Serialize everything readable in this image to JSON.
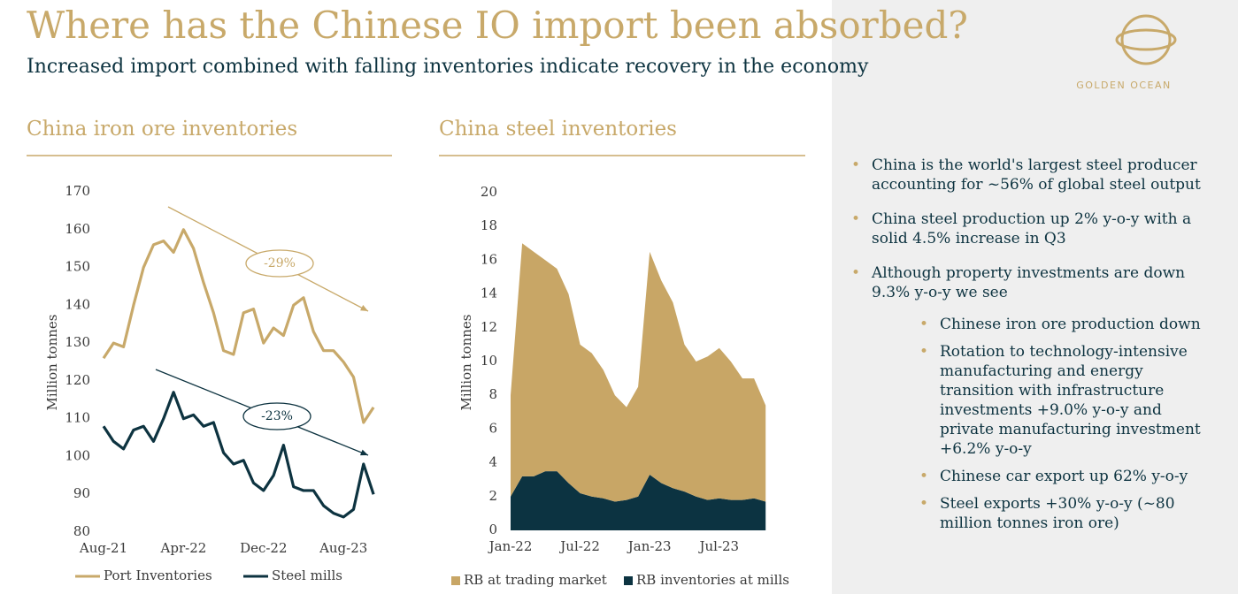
{
  "header": {
    "title": "Where has the Chinese IO import been absorbed?",
    "subtitle": "Increased import combined with falling inventories indicate recovery in the economy",
    "logo": "GOLDEN OCEAN"
  },
  "bullets": [
    {
      "text": "China is the world's largest steel producer accounting for ~56% of global steel output",
      "children": []
    },
    {
      "text": "China steel production up 2% y-o-y with a solid 4.5% increase in Q3",
      "children": []
    },
    {
      "text": "Although property investments are down 9.3% y-o-y we see",
      "children": [
        "Chinese iron ore production down",
        "Rotation to technology-intensive manufacturing and energy transition with infrastructure investments +9.0% y-o-y and private manufacturing investment +6.2% y-o-y",
        "Chinese car export up 62% y-o-y",
        "Steel exports +30% y-o-y (~80 million tonnes iron ore)"
      ]
    }
  ],
  "chart_data": [
    {
      "type": "line",
      "title": "China iron ore inventories",
      "ylabel": "Million tonnes",
      "categories": [
        "Aug-21",
        null,
        null,
        null,
        null,
        null,
        null,
        null,
        "Apr-22",
        null,
        null,
        null,
        null,
        null,
        null,
        null,
        "Dec-22",
        null,
        null,
        null,
        null,
        null,
        null,
        null,
        "Aug-23",
        null,
        null,
        null
      ],
      "series": [
        {
          "name": "Port Inventories",
          "color": "#c8a96a",
          "values": [
            126,
            130,
            129,
            140,
            150,
            156,
            157,
            154,
            160,
            155,
            146,
            138,
            128,
            127,
            138,
            139,
            130,
            134,
            132,
            140,
            142,
            133,
            128,
            128,
            125,
            121,
            109,
            113
          ]
        },
        {
          "name": "Steel mills",
          "color": "#0d3340",
          "values": [
            108,
            104,
            102,
            107,
            108,
            104,
            110,
            117,
            110,
            111,
            108,
            109,
            101,
            98,
            99,
            93,
            91,
            95,
            103,
            92,
            91,
            91,
            87,
            85,
            84,
            86,
            98,
            90
          ]
        }
      ],
      "ylim": [
        80,
        170
      ],
      "yticks": [
        80,
        90,
        100,
        110,
        120,
        130,
        140,
        150,
        160,
        170
      ],
      "annotations": [
        {
          "text": "-29%",
          "color": "#c8a96a"
        },
        {
          "text": "-23%",
          "color": "#0d3340"
        }
      ],
      "legend": "bottom"
    },
    {
      "type": "stacked-area",
      "title": "China steel inventories",
      "ylabel": "Million tonnes",
      "categories": [
        "Jan-22",
        null,
        null,
        null,
        null,
        null,
        "Jul-22",
        null,
        null,
        null,
        null,
        null,
        "Jan-23",
        null,
        null,
        null,
        null,
        null,
        "Jul-23",
        null,
        null,
        null,
        null
      ],
      "series": [
        {
          "name": "RB at trading market",
          "color": "#c8a666",
          "values": [
            6,
            13.8,
            13.3,
            12.5,
            12,
            11.2,
            8.8,
            8.5,
            7.6,
            6.3,
            5.5,
            6.5,
            13.2,
            12,
            11,
            8.7,
            8,
            8.5,
            8.9,
            8.2,
            7.2,
            7.1,
            5.7
          ]
        },
        {
          "name": "RB inventories at mills",
          "color": "#0c3341",
          "values": [
            2,
            3.2,
            3.2,
            3.5,
            3.5,
            2.8,
            2.2,
            2,
            1.9,
            1.7,
            1.8,
            2,
            3.3,
            2.8,
            2.5,
            2.3,
            2,
            1.8,
            1.9,
            1.8,
            1.8,
            1.9,
            1.7
          ]
        }
      ],
      "ylim": [
        0,
        20
      ],
      "yticks": [
        0,
        2,
        4,
        6,
        8,
        10,
        12,
        14,
        16,
        18,
        20
      ],
      "legend": "bottom"
    }
  ]
}
